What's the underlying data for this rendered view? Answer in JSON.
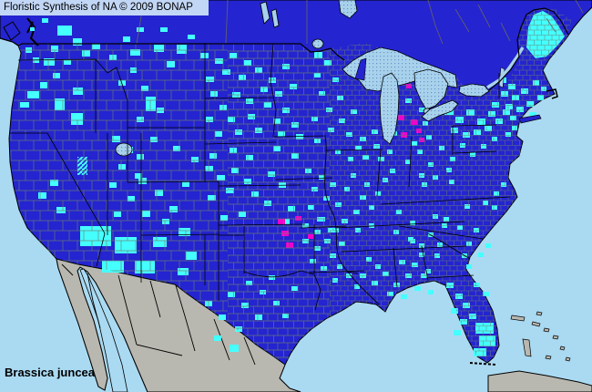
{
  "header": {
    "title": "Floristic Synthesis of NA © 2009 BONAP"
  },
  "footer": {
    "species_label": "Brassica juncea"
  },
  "map": {
    "colors": {
      "water": "#AADAF2",
      "land_blue": "#2424D0",
      "cyan": "#45FFFF",
      "magenta": "#EE00CC",
      "mexico_gray": "#B8B8B0",
      "lake_base": "#A8D2EC",
      "lake_dot": "#6A93C8",
      "county_line": "#6B7D6F",
      "titlebar_bg": "#C2D6F5",
      "border_black": "#000000"
    },
    "cyan_counties": [
      [
        46,
        20,
        7,
        5
      ],
      [
        63,
        28,
        16,
        11
      ],
      [
        80,
        42,
        10,
        8
      ],
      [
        33,
        30,
        5,
        4
      ],
      [
        56,
        50,
        8,
        7
      ],
      [
        90,
        55,
        9,
        7
      ],
      [
        101,
        48,
        9,
        6
      ],
      [
        70,
        65,
        8,
        6
      ],
      [
        48,
        64,
        12,
        8
      ],
      [
        28,
        52,
        7,
        6
      ],
      [
        36,
        63,
        7,
        6
      ],
      [
        58,
        80,
        8,
        6
      ],
      [
        44,
        90,
        8,
        7
      ],
      [
        30,
        100,
        13,
        8
      ],
      [
        22,
        112,
        10,
        6
      ],
      [
        60,
        108,
        11,
        13
      ],
      [
        78,
        124,
        13,
        13
      ],
      [
        80,
        96,
        11,
        8
      ],
      [
        120,
        60,
        8,
        6
      ],
      [
        135,
        40,
        8,
        6
      ],
      [
        150,
        30,
        8,
        5
      ],
      [
        176,
        30,
        8,
        5
      ],
      [
        206,
        38,
        8,
        5
      ],
      [
        143,
        54,
        11,
        7
      ],
      [
        169,
        49,
        11,
        8
      ],
      [
        194,
        49,
        11,
        10
      ],
      [
        183,
        67,
        9,
        7
      ],
      [
        143,
        74,
        7,
        6
      ],
      [
        130,
        88,
        8,
        6
      ],
      [
        155,
        94,
        8,
        6
      ],
      [
        160,
        106,
        11,
        16
      ],
      [
        123,
        149,
        9,
        7
      ],
      [
        137,
        161,
        9,
        7
      ],
      [
        150,
        169,
        8,
        6
      ],
      [
        55,
        197,
        9,
        7
      ],
      [
        42,
        211,
        9,
        7
      ],
      [
        62,
        227,
        10,
        7
      ],
      [
        130,
        180,
        8,
        6
      ],
      [
        148,
        190,
        8,
        6
      ],
      [
        120,
        200,
        8,
        6
      ],
      [
        140,
        215,
        8,
        6
      ],
      [
        125,
        232,
        8,
        6
      ],
      [
        152,
        195,
        9,
        7
      ],
      [
        170,
        208,
        9,
        7
      ],
      [
        186,
        226,
        9,
        7
      ],
      [
        200,
        199,
        8,
        6
      ],
      [
        156,
        231,
        9,
        7
      ],
      [
        178,
        240,
        8,
        6
      ],
      [
        165,
        150,
        8,
        6
      ],
      [
        190,
        160,
        8,
        6
      ],
      [
        210,
        172,
        8,
        6
      ],
      [
        150,
        128,
        8,
        6
      ],
      [
        172,
        118,
        8,
        6
      ],
      [
        88,
        248,
        34,
        22
      ],
      [
        126,
        260,
        24,
        18
      ],
      [
        112,
        286,
        24,
        13
      ],
      [
        148,
        286,
        22,
        14
      ],
      [
        168,
        260,
        15,
        11
      ],
      [
        196,
        250,
        13,
        9
      ],
      [
        204,
        276,
        12,
        9
      ],
      [
        195,
        294,
        12,
        8
      ],
      [
        220,
        58,
        9,
        6
      ],
      [
        236,
        64,
        9,
        6
      ],
      [
        252,
        58,
        8,
        6
      ],
      [
        268,
        66,
        8,
        6
      ],
      [
        244,
        76,
        9,
        6
      ],
      [
        226,
        84,
        9,
        6
      ],
      [
        262,
        82,
        8,
        6
      ],
      [
        280,
        74,
        8,
        6
      ],
      [
        295,
        85,
        8,
        6
      ],
      [
        310,
        70,
        8,
        6
      ],
      [
        286,
        95,
        8,
        6
      ],
      [
        302,
        100,
        8,
        6
      ],
      [
        318,
        92,
        8,
        6
      ],
      [
        231,
        100,
        8,
        6
      ],
      [
        255,
        101,
        9,
        6
      ],
      [
        270,
        108,
        8,
        6
      ],
      [
        241,
        115,
        8,
        6
      ],
      [
        290,
        112,
        8,
        6
      ],
      [
        310,
        118,
        8,
        6
      ],
      [
        226,
        128,
        8,
        6
      ],
      [
        250,
        128,
        8,
        6
      ],
      [
        272,
        125,
        8,
        6
      ],
      [
        300,
        130,
        8,
        6
      ],
      [
        320,
        134,
        8,
        6
      ],
      [
        236,
        144,
        8,
        6
      ],
      [
        258,
        142,
        8,
        6
      ],
      [
        280,
        140,
        8,
        6
      ],
      [
        305,
        144,
        8,
        6
      ],
      [
        325,
        147,
        8,
        6
      ],
      [
        230,
        168,
        8,
        6
      ],
      [
        252,
        162,
        8,
        6
      ],
      [
        270,
        170,
        8,
        6
      ],
      [
        300,
        160,
        8,
        6
      ],
      [
        320,
        168,
        8,
        6
      ],
      [
        225,
        182,
        9,
        6
      ],
      [
        238,
        192,
        9,
        6
      ],
      [
        254,
        184,
        8,
        6
      ],
      [
        268,
        196,
        8,
        6
      ],
      [
        248,
        206,
        9,
        6
      ],
      [
        228,
        214,
        9,
        6
      ],
      [
        276,
        210,
        8,
        6
      ],
      [
        294,
        188,
        8,
        6
      ],
      [
        306,
        200,
        8,
        6
      ],
      [
        290,
        220,
        8,
        6
      ],
      [
        316,
        226,
        8,
        6
      ],
      [
        242,
        236,
        8,
        6
      ],
      [
        262,
        232,
        8,
        6
      ],
      [
        310,
        240,
        8,
        6
      ],
      [
        345,
        57,
        9,
        7
      ],
      [
        356,
        66,
        8,
        6
      ],
      [
        345,
        80,
        7,
        5
      ],
      [
        365,
        85,
        7,
        5
      ],
      [
        350,
        100,
        7,
        5
      ],
      [
        370,
        105,
        7,
        5
      ],
      [
        358,
        118,
        7,
        5
      ],
      [
        342,
        128,
        7,
        5
      ],
      [
        372,
        130,
        7,
        5
      ],
      [
        385,
        120,
        7,
        5
      ],
      [
        360,
        140,
        7,
        5
      ],
      [
        380,
        145,
        7,
        5
      ],
      [
        345,
        152,
        7,
        5
      ],
      [
        395,
        150,
        7,
        5
      ],
      [
        408,
        142,
        7,
        5
      ],
      [
        390,
        160,
        7,
        5
      ],
      [
        410,
        158,
        7,
        5
      ],
      [
        398,
        170,
        7,
        5
      ],
      [
        415,
        172,
        7,
        5
      ],
      [
        425,
        164,
        6,
        5
      ],
      [
        382,
        172,
        6,
        5
      ],
      [
        368,
        164,
        6,
        5
      ],
      [
        430,
        144,
        6,
        5
      ],
      [
        391,
        80,
        4,
        6
      ],
      [
        335,
        185,
        7,
        5
      ],
      [
        350,
        192,
        7,
        5
      ],
      [
        342,
        205,
        7,
        5
      ],
      [
        362,
        200,
        7,
        5
      ],
      [
        355,
        215,
        7,
        5
      ],
      [
        338,
        225,
        7,
        5
      ],
      [
        368,
        222,
        7,
        5
      ],
      [
        348,
        238,
        7,
        5
      ],
      [
        332,
        245,
        7,
        5
      ],
      [
        360,
        250,
        7,
        5
      ],
      [
        375,
        240,
        7,
        5
      ],
      [
        388,
        230,
        7,
        5
      ],
      [
        395,
        214,
        7,
        5
      ],
      [
        405,
        225,
        6,
        5
      ],
      [
        412,
        210,
        6,
        5
      ],
      [
        420,
        195,
        6,
        5
      ],
      [
        428,
        185,
        6,
        5
      ],
      [
        400,
        200,
        6,
        5
      ],
      [
        385,
        190,
        6,
        5
      ],
      [
        378,
        205,
        6,
        5
      ],
      [
        390,
        250,
        6,
        5
      ],
      [
        405,
        245,
        6,
        5
      ],
      [
        445,
        108,
        7,
        5
      ],
      [
        460,
        118,
        7,
        5
      ],
      [
        452,
        155,
        6,
        5
      ],
      [
        468,
        148,
        6,
        5
      ],
      [
        464,
        133,
        6,
        5
      ],
      [
        430,
        92,
        6,
        5
      ],
      [
        445,
        175,
        6,
        5
      ],
      [
        458,
        164,
        6,
        5
      ],
      [
        470,
        178,
        6,
        5
      ],
      [
        482,
        160,
        6,
        5
      ],
      [
        494,
        172,
        6,
        5
      ],
      [
        505,
        157,
        6,
        5
      ],
      [
        516,
        167,
        6,
        5
      ],
      [
        460,
        190,
        6,
        5
      ],
      [
        475,
        192,
        6,
        5
      ],
      [
        490,
        184,
        6,
        5
      ],
      [
        435,
        230,
        6,
        5
      ],
      [
        450,
        242,
        6,
        5
      ],
      [
        463,
        200,
        6,
        5
      ],
      [
        432,
        252,
        6,
        5
      ],
      [
        448,
        260,
        6,
        5
      ],
      [
        470,
        255,
        6,
        5
      ],
      [
        485,
        245,
        6,
        5
      ],
      [
        493,
        197,
        6,
        5
      ],
      [
        510,
        224,
        6,
        5
      ],
      [
        480,
        266,
        6,
        5
      ],
      [
        502,
        247,
        6,
        5
      ],
      [
        488,
        118,
        10,
        8
      ],
      [
        500,
        128,
        9,
        7
      ],
      [
        512,
        120,
        9,
        7
      ],
      [
        524,
        130,
        9,
        7
      ],
      [
        536,
        122,
        8,
        6
      ],
      [
        495,
        140,
        8,
        6
      ],
      [
        508,
        145,
        8,
        6
      ],
      [
        520,
        142,
        8,
        6
      ],
      [
        532,
        138,
        8,
        6
      ],
      [
        544,
        130,
        8,
        6
      ],
      [
        540,
        112,
        8,
        6
      ],
      [
        552,
        120,
        8,
        6
      ],
      [
        528,
        158,
        6,
        5
      ],
      [
        540,
        150,
        6,
        5
      ],
      [
        555,
        145,
        6,
        5
      ],
      [
        562,
        138,
        6,
        5
      ],
      [
        586,
        126,
        6,
        4
      ],
      [
        548,
        85,
        8,
        6
      ],
      [
        558,
        92,
        8,
        6
      ],
      [
        550,
        100,
        8,
        6
      ],
      [
        562,
        104,
        8,
        6
      ],
      [
        572,
        97,
        8,
        6
      ],
      [
        555,
        114,
        8,
        6
      ],
      [
        567,
        117,
        8,
        6
      ],
      [
        578,
        111,
        8,
        6
      ],
      [
        560,
        127,
        7,
        5
      ],
      [
        572,
        129,
        7,
        5
      ],
      [
        582,
        123,
        7,
        5
      ],
      [
        590,
        104,
        7,
        6
      ],
      [
        585,
        88,
        7,
        6
      ],
      [
        594,
        95,
        6,
        5
      ],
      [
        530,
        220,
        6,
        5
      ],
      [
        540,
        225,
        6,
        5
      ],
      [
        520,
        250,
        6,
        5
      ],
      [
        533,
        267,
        6,
        5
      ],
      [
        512,
        265,
        6,
        5
      ],
      [
        525,
        277,
        6,
        5
      ],
      [
        542,
        210,
        6,
        5
      ],
      [
        550,
        200,
        6,
        5
      ],
      [
        507,
        278,
        6,
        5
      ],
      [
        512,
        290,
        6,
        5
      ],
      [
        467,
        295,
        6,
        5
      ],
      [
        460,
        267,
        6,
        5
      ],
      [
        450,
        262,
        6,
        5
      ],
      [
        477,
        278,
        6,
        5
      ],
      [
        487,
        238,
        6,
        5
      ],
      [
        475,
        235,
        6,
        5
      ],
      [
        395,
        300,
        7,
        5
      ],
      [
        408,
        308,
        7,
        5
      ],
      [
        420,
        298,
        7,
        5
      ],
      [
        432,
        310,
        7,
        5
      ],
      [
        445,
        300,
        7,
        5
      ],
      [
        425,
        320,
        7,
        5
      ],
      [
        440,
        323,
        7,
        5
      ],
      [
        455,
        314,
        7,
        5
      ],
      [
        462,
        300,
        7,
        5
      ],
      [
        470,
        318,
        6,
        5
      ],
      [
        452,
        288,
        7,
        5
      ],
      [
        438,
        285,
        7,
        5
      ],
      [
        460,
        277,
        6,
        5
      ],
      [
        412,
        290,
        6,
        5
      ],
      [
        402,
        282,
        6,
        5
      ],
      [
        389,
        312,
        6,
        5
      ],
      [
        380,
        300,
        6,
        5
      ],
      [
        370,
        290,
        6,
        5
      ],
      [
        365,
        305,
        6,
        5
      ],
      [
        345,
        252,
        7,
        5
      ],
      [
        350,
        238,
        7,
        5
      ],
      [
        332,
        262,
        7,
        5
      ],
      [
        345,
        270,
        7,
        5
      ],
      [
        356,
        262,
        7,
        5
      ],
      [
        340,
        284,
        7,
        5
      ],
      [
        352,
        292,
        7,
        5
      ],
      [
        362,
        278,
        7,
        5
      ],
      [
        365,
        250,
        7,
        5
      ],
      [
        372,
        265,
        7,
        5
      ],
      [
        250,
        320,
        8,
        6
      ],
      [
        265,
        332,
        8,
        6
      ],
      [
        240,
        345,
        8,
        6
      ],
      [
        280,
        345,
        8,
        6
      ],
      [
        258,
        358,
        8,
        6
      ],
      [
        300,
        330,
        7,
        5
      ],
      [
        310,
        344,
        7,
        5
      ],
      [
        235,
        368,
        8,
        6
      ],
      [
        252,
        378,
        10,
        8
      ],
      [
        295,
        302,
        7,
        5
      ],
      [
        285,
        318,
        7,
        5
      ],
      [
        320,
        314,
        7,
        5
      ],
      [
        225,
        330,
        8,
        6
      ],
      [
        270,
        308,
        7,
        5
      ],
      [
        490,
        310,
        8,
        6
      ],
      [
        500,
        322,
        8,
        6
      ],
      [
        495,
        338,
        8,
        6
      ],
      [
        508,
        332,
        8,
        6
      ],
      [
        505,
        350,
        8,
        6
      ],
      [
        498,
        362,
        8,
        6
      ],
      [
        515,
        344,
        8,
        6
      ],
      [
        520,
        310,
        7,
        5
      ],
      [
        530,
        320,
        7,
        5
      ],
      [
        522,
        354,
        20,
        12
      ],
      [
        526,
        368,
        18,
        12
      ],
      [
        520,
        382,
        14,
        9
      ]
    ],
    "magenta_counties": [
      [
        438,
        88,
        7,
        5
      ],
      [
        446,
        92,
        6,
        5
      ],
      [
        394,
        68,
        4,
        11
      ],
      [
        437,
        126,
        7,
        6
      ],
      [
        451,
        131,
        7,
        6
      ],
      [
        457,
        141,
        6,
        5
      ],
      [
        440,
        145,
        7,
        6
      ],
      [
        460,
        151,
        6,
        5
      ],
      [
        305,
        240,
        8,
        6
      ],
      [
        324,
        237,
        7,
        5
      ],
      [
        309,
        253,
        8,
        6
      ],
      [
        314,
        266,
        8,
        6
      ],
      [
        338,
        257,
        7,
        5
      ]
    ],
    "hatched_counties": [
      [
        85,
        172,
        11,
        20
      ]
    ]
  }
}
